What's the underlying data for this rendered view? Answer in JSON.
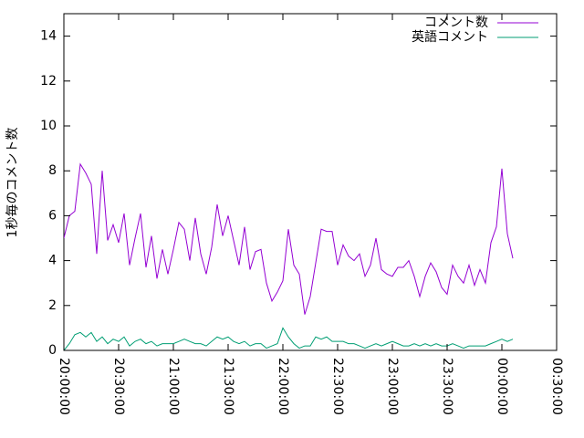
{
  "chart_data": {
    "type": "line",
    "y_label": "1秒毎のコメント数",
    "x": [
      "20:00:00",
      "20:03:00",
      "20:06:00",
      "20:09:00",
      "20:12:00",
      "20:15:00",
      "20:18:00",
      "20:21:00",
      "20:24:00",
      "20:27:00",
      "20:30:00",
      "20:33:00",
      "20:36:00",
      "20:39:00",
      "20:42:00",
      "20:45:00",
      "20:48:00",
      "20:51:00",
      "20:54:00",
      "20:57:00",
      "21:00:00",
      "21:03:00",
      "21:06:00",
      "21:09:00",
      "21:12:00",
      "21:15:00",
      "21:18:00",
      "21:21:00",
      "21:24:00",
      "21:27:00",
      "21:30:00",
      "21:33:00",
      "21:36:00",
      "21:39:00",
      "21:42:00",
      "21:45:00",
      "21:48:00",
      "21:51:00",
      "21:54:00",
      "21:57:00",
      "22:00:00",
      "22:03:00",
      "22:06:00",
      "22:09:00",
      "22:12:00",
      "22:15:00",
      "22:18:00",
      "22:21:00",
      "22:24:00",
      "22:27:00",
      "22:30:00",
      "22:33:00",
      "22:36:00",
      "22:39:00",
      "22:42:00",
      "22:45:00",
      "22:48:00",
      "22:51:00",
      "22:54:00",
      "22:57:00",
      "23:00:00",
      "23:03:00",
      "23:06:00",
      "23:09:00",
      "23:12:00",
      "23:15:00",
      "23:18:00",
      "23:21:00",
      "23:24:00",
      "23:27:00",
      "23:30:00",
      "23:33:00",
      "23:36:00",
      "23:39:00",
      "23:42:00",
      "23:45:00",
      "23:48:00",
      "23:51:00",
      "23:54:00",
      "23:57:00",
      "00:00:00",
      "00:03:00",
      "00:06:00"
    ],
    "series": [
      {
        "name": "コメント数",
        "color": "#9400d3",
        "values": [
          5.0,
          6.0,
          6.2,
          8.3,
          7.9,
          7.4,
          4.3,
          8.0,
          4.9,
          5.6,
          4.8,
          6.1,
          3.8,
          5.0,
          6.1,
          3.7,
          5.1,
          3.2,
          4.5,
          3.4,
          4.5,
          5.7,
          5.4,
          4.0,
          5.9,
          4.3,
          3.4,
          4.6,
          6.5,
          5.1,
          6.0,
          4.9,
          3.8,
          5.5,
          3.6,
          4.4,
          4.5,
          3.0,
          2.2,
          2.6,
          3.1,
          5.4,
          3.8,
          3.4,
          1.6,
          2.4,
          3.9,
          5.4,
          5.3,
          5.3,
          3.8,
          4.7,
          4.2,
          4.0,
          4.3,
          3.3,
          3.8,
          5.0,
          3.6,
          3.4,
          3.3,
          3.7,
          3.7,
          4.0,
          3.3,
          2.4,
          3.3,
          3.9,
          3.5,
          2.8,
          2.5,
          3.8,
          3.3,
          3.0,
          3.8,
          2.9,
          3.6,
          3.0,
          4.8,
          5.5,
          8.1,
          5.2,
          4.1
        ]
      },
      {
        "name": "英語コメント",
        "color": "#009e73",
        "values": [
          0.0,
          0.3,
          0.7,
          0.8,
          0.6,
          0.8,
          0.4,
          0.6,
          0.3,
          0.5,
          0.4,
          0.6,
          0.2,
          0.4,
          0.5,
          0.3,
          0.4,
          0.2,
          0.3,
          0.3,
          0.3,
          0.4,
          0.5,
          0.4,
          0.3,
          0.3,
          0.2,
          0.4,
          0.6,
          0.5,
          0.6,
          0.4,
          0.3,
          0.4,
          0.2,
          0.3,
          0.3,
          0.1,
          0.2,
          0.3,
          1.0,
          0.6,
          0.3,
          0.1,
          0.2,
          0.2,
          0.6,
          0.5,
          0.6,
          0.4,
          0.4,
          0.4,
          0.3,
          0.3,
          0.2,
          0.1,
          0.2,
          0.3,
          0.2,
          0.3,
          0.4,
          0.3,
          0.2,
          0.2,
          0.3,
          0.2,
          0.3,
          0.2,
          0.3,
          0.2,
          0.2,
          0.3,
          0.2,
          0.1,
          0.2,
          0.2,
          0.2,
          0.2,
          0.3,
          0.4,
          0.5,
          0.4,
          0.5
        ]
      }
    ],
    "xlim": [
      "20:00:00",
      "00:30:00"
    ],
    "xticks": [
      "20:00:00",
      "20:30:00",
      "21:00:00",
      "21:30:00",
      "22:00:00",
      "22:30:00",
      "23:00:00",
      "23:30:00",
      "00:00:00",
      "00:30:00"
    ],
    "ylim": [
      0,
      15
    ],
    "yticks": [
      0,
      2,
      4,
      6,
      8,
      10,
      12,
      14
    ],
    "legend": "top-right"
  }
}
